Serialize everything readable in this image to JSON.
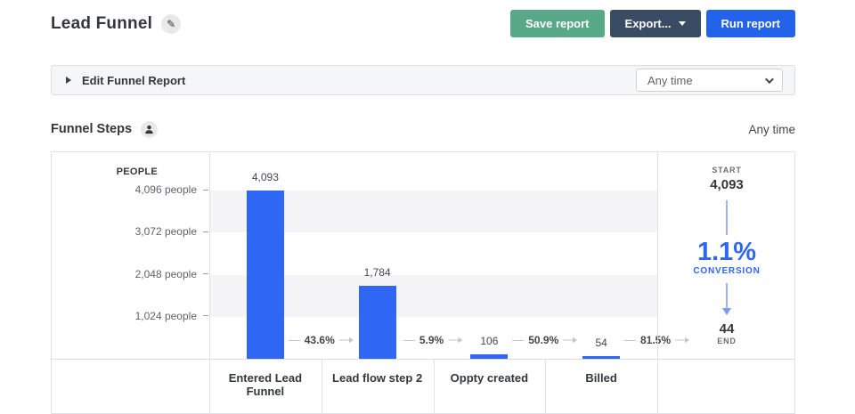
{
  "header": {
    "title": "Lead Funnel",
    "buttons": {
      "save": "Save report",
      "export": "Export...",
      "run": "Run report"
    }
  },
  "filter_bar": {
    "label": "Edit Funnel Report",
    "date_range": "Any time"
  },
  "section": {
    "title": "Funnel Steps",
    "date_range": "Any time"
  },
  "colors": {
    "accent_blue": "#2f66f3",
    "save_green": "#57a987",
    "export_navy": "#3a4b64",
    "run_blue": "#2363ec",
    "band_gray": "#f4f4f6",
    "conversion_blue": "#2f66f3",
    "arrow_light_blue": "#7e9bf3"
  },
  "icons": [
    "pencil-icon",
    "chevron-down-icon",
    "caret-right-icon",
    "person-icon",
    "arrow-right-icon",
    "arrow-down-icon"
  ],
  "chart_data": {
    "type": "bar",
    "variant": "funnel",
    "title": "Funnel Steps",
    "ylabel": "PEOPLE",
    "categories": [
      "Entered Lead Funnel",
      "Lead flow step 2",
      "Oppty created",
      "Billed"
    ],
    "values": [
      4093,
      1784,
      106,
      54
    ],
    "value_labels": [
      "4,093",
      "1,784",
      "106",
      "54"
    ],
    "conversions": [
      "43.6%",
      "5.9%",
      "50.9%",
      "81.5%"
    ],
    "yticks": [
      {
        "value": 4096,
        "label": "4,096 people"
      },
      {
        "value": 3072,
        "label": "3,072 people"
      },
      {
        "value": 2048,
        "label": "2,048 people"
      },
      {
        "value": 1024,
        "label": "1,024 people"
      }
    ],
    "ylim": [
      0,
      5030
    ],
    "grid": "alternating-bands",
    "legend": "none",
    "summary": {
      "start_label": "START",
      "start_value": "4,093",
      "conversion_value": "1.1%",
      "conversion_label": "CONVERSION",
      "end_value": "44",
      "end_label": "END"
    }
  }
}
